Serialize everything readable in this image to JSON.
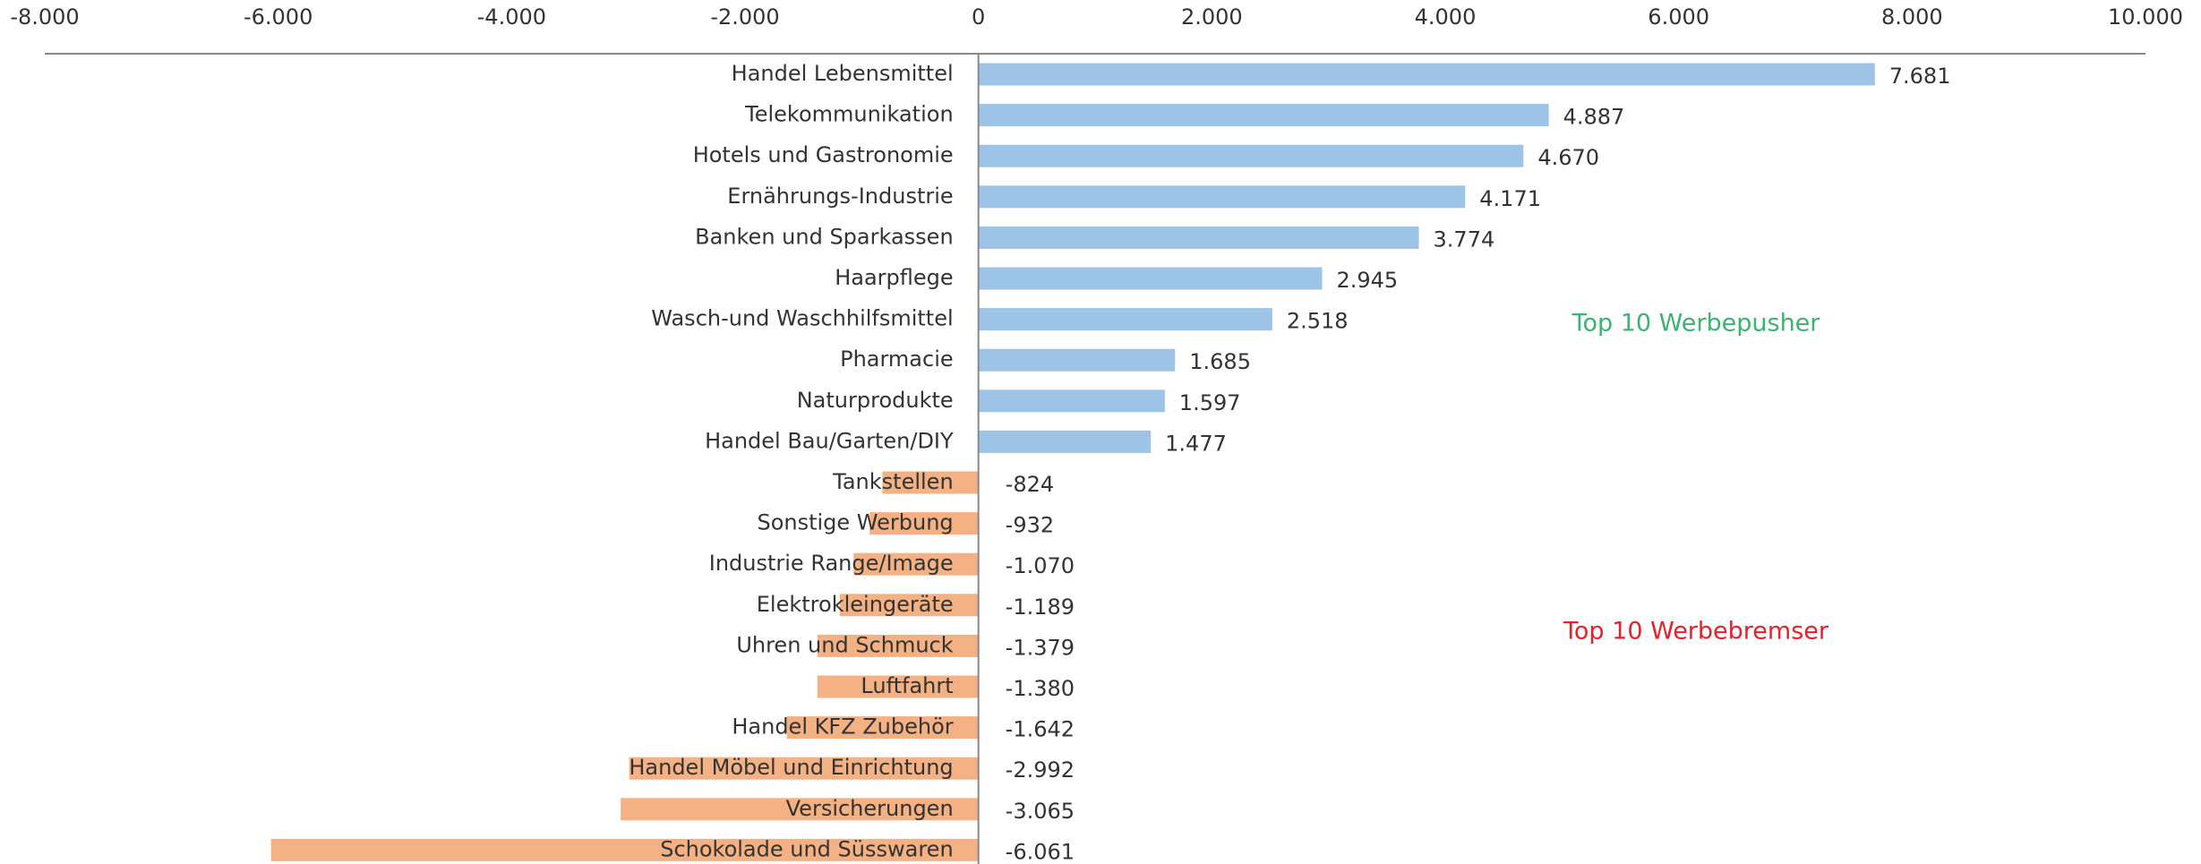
{
  "chart_data": {
    "type": "hbar",
    "categories": [
      "Handel Lebensmittel",
      "Telekommunikation",
      "Hotels und Gastronomie",
      "Ernährungs-Industrie ",
      "Banken und Sparkassen",
      "Haarpflege",
      "Wasch-und Waschhilfsmittel",
      "Pharmacie",
      "Naturprodukte",
      "Handel Bau/Garten/DIY",
      "Tankstellen",
      "Sonstige Werbung",
      "Industrie Range/Image",
      "Elektrokleingeräte",
      "Uhren und Schmuck",
      "Luftfahrt",
      "Handel KFZ Zubehör",
      "Handel Möbel und Einrichtung",
      "Versicherungen",
      "Schokolade und Süsswaren"
    ],
    "values": [
      7681,
      4887,
      4670,
      4171,
      3774,
      2945,
      2518,
      1685,
      1597,
      1477,
      -824,
      -932,
      -1070,
      -1189,
      -1379,
      -1380,
      -1642,
      -2992,
      -3065,
      -6061
    ],
    "value_labels": [
      "7.681",
      "4.887",
      "4.670",
      "4.171",
      "3.774",
      "2.945",
      "2.518",
      "1.685",
      "1.597",
      "1.477",
      "-824",
      "-932",
      "-1.070",
      "-1.189",
      "-1.379",
      "-1.380",
      "-1.642",
      "-2.992",
      "-3.065",
      "-6.061"
    ],
    "color": "#9dc3e6",
    "negative_color": "#f4b183",
    "xlim": [
      -8000,
      10000
    ],
    "xticks": [
      {
        "value": -8000,
        "label": "-8.000"
      },
      {
        "value": -6000,
        "label": "-6.000"
      },
      {
        "value": -4000,
        "label": "-4.000"
      },
      {
        "value": -2000,
        "label": "-2.000"
      },
      0,
      {
        "value": 2000,
        "label": "2.000"
      },
      {
        "value": 4000,
        "label": "4.000"
      },
      {
        "value": 6000,
        "label": "6.000"
      },
      {
        "value": 8000,
        "label": "8.000"
      },
      {
        "value": 10000,
        "label": "10.000"
      }
    ],
    "annotations": [
      {
        "text": "Top 10 Werbepusher",
        "color": "#3cb371"
      },
      {
        "text": "Top 10 Werbebremser",
        "color": "#e8202a"
      }
    ]
  }
}
